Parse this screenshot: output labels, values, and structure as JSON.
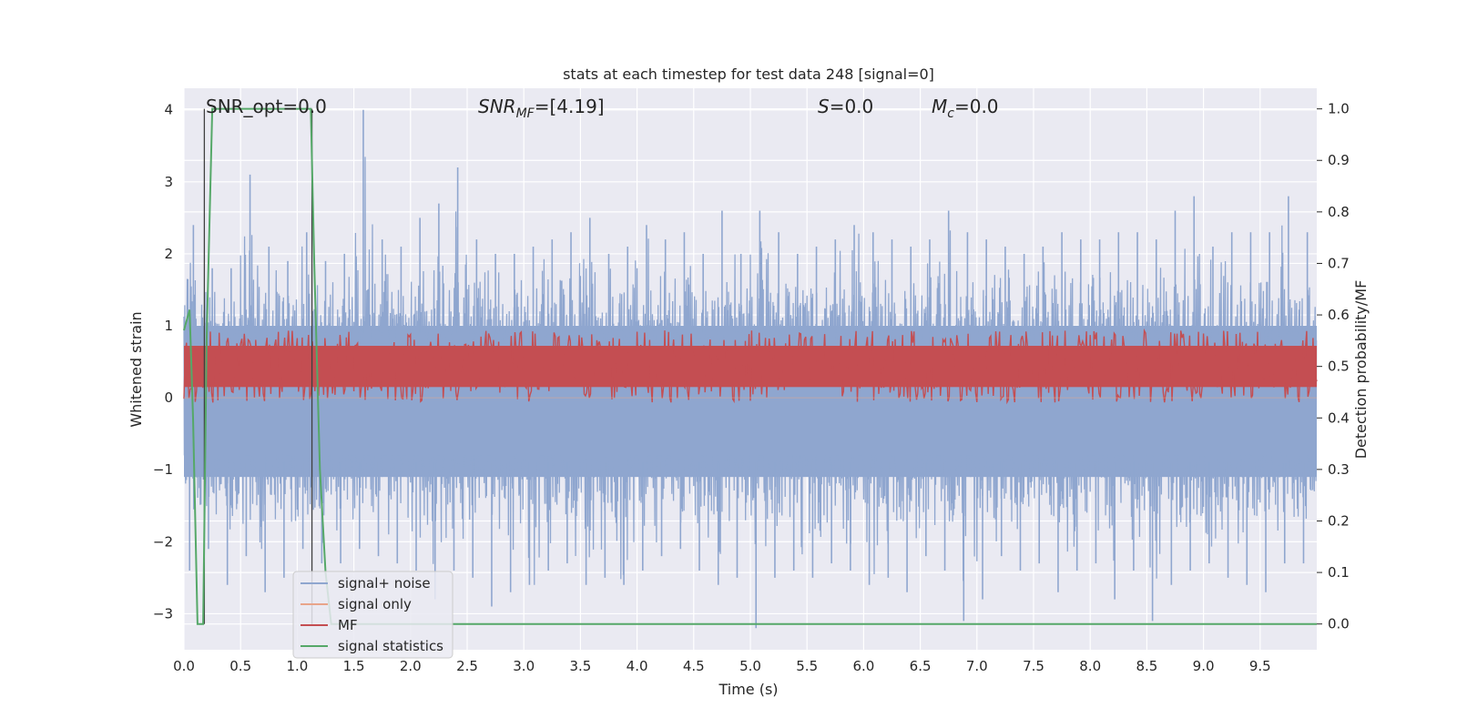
{
  "chart_data": {
    "type": "line",
    "title": "stats at each timestep for test data 248 [signal=0]",
    "xlabel": "Time (s)",
    "ylabel_left": "Whitened strain",
    "ylabel_right": "Detection probability/MF",
    "xlim": [
      0.0,
      10.0
    ],
    "ylim_left": [
      -3.5,
      4.3
    ],
    "ylim_right": [
      -0.05,
      1.04
    ],
    "xticks": [
      0.0,
      0.5,
      1.0,
      1.5,
      2.0,
      2.5,
      3.0,
      3.5,
      4.0,
      4.5,
      5.0,
      5.5,
      6.0,
      6.5,
      7.0,
      7.5,
      8.0,
      8.5,
      9.0,
      9.5
    ],
    "xtick_labels": [
      "0.0",
      "0.5",
      "1.0",
      "1.5",
      "2.0",
      "2.5",
      "3.0",
      "3.5",
      "4.0",
      "4.5",
      "5.0",
      "5.5",
      "6.0",
      "6.5",
      "7.0",
      "7.5",
      "8.0",
      "8.5",
      "9.0",
      "9.5"
    ],
    "yticks_left": [
      -3,
      -2,
      -1,
      0,
      1,
      2,
      3,
      4
    ],
    "ytick_labels_left": [
      "−3",
      "−2",
      "−1",
      "0",
      "1",
      "2",
      "3",
      "4"
    ],
    "yticks_right": [
      0.0,
      0.1,
      0.2,
      0.3,
      0.4,
      0.5,
      0.6,
      0.7,
      0.8,
      0.9,
      1.0
    ],
    "ytick_labels_right": [
      "0.0",
      "0.1",
      "0.2",
      "0.3",
      "0.4",
      "0.5",
      "0.6",
      "0.7",
      "0.8",
      "0.9",
      "1.0"
    ],
    "grid": true,
    "legend_position": "lower-left",
    "series": [
      {
        "name": "signal+ noise",
        "axis": "left",
        "color": "#8fa6cf",
        "description_values": "dense noise, sample peaks",
        "envelope_upper": [
          2.4,
          1.8,
          1.8,
          3.1,
          2.1,
          1.9,
          2.3,
          1.9,
          2.0,
          4.0,
          2.2,
          2.1,
          2.5,
          2.7,
          3.2,
          2.2,
          2.0,
          2.0,
          2.1,
          2.2,
          2.3,
          2.5,
          2.0,
          2.1,
          2.4,
          2.2,
          2.3,
          2.0,
          2.6,
          2.0,
          2.6,
          2.3,
          2.0,
          2.1,
          2.2,
          2.4,
          2.3,
          2.2,
          2.1,
          2.2,
          2.6,
          2.3,
          2.2,
          2.1,
          2.0,
          2.1,
          2.3,
          2.2,
          2.2,
          2.3,
          2.3,
          2.2,
          2.6,
          2.8,
          2.1,
          2.3,
          2.3,
          2.3,
          2.8,
          2.3
        ],
        "envelope_lower": [
          -2.4,
          -2.1,
          -2.6,
          -2.2,
          -2.7,
          -2.5,
          -2.1,
          -2.3,
          -2.3,
          -2.1,
          -2.2,
          -2.3,
          -2.4,
          -2.8,
          -2.4,
          -2.5,
          -2.9,
          -2.7,
          -2.6,
          -2.4,
          -2.3,
          -2.6,
          -2.5,
          -2.6,
          -2.4,
          -2.2,
          -2.1,
          -2.4,
          -2.6,
          -2.5,
          -3.2,
          -2.5,
          -2.4,
          -2.5,
          -2.3,
          -2.4,
          -2.6,
          -2.5,
          -2.7,
          -2.2,
          -2.4,
          -3.1,
          -2.8,
          -2.2,
          -2.4,
          -2.3,
          -2.7,
          -2.4,
          -2.3,
          -2.8,
          -2.4,
          -3.1,
          -2.6,
          -2.4,
          -2.3,
          -2.5,
          -2.6,
          -2.7,
          -2.3,
          -2.3
        ],
        "mean": 0.0
      },
      {
        "name": "signal only",
        "axis": "left",
        "color": "#e8a58a",
        "values_constant": 0.0
      },
      {
        "name": "MF",
        "axis": "right",
        "color": "#c44e52",
        "band_center": 0.5,
        "band_lower": 0.43,
        "band_upper": 0.57,
        "peak_max": 0.58
      },
      {
        "name": "signal statistics",
        "axis": "right",
        "color": "#55a868",
        "x": [
          0.0,
          0.05,
          0.08,
          0.12,
          0.17,
          0.2,
          0.25,
          0.3,
          1.12,
          1.15,
          1.2,
          1.25,
          1.3,
          10.0
        ],
        "y": [
          0.57,
          0.61,
          0.4,
          0.0,
          0.0,
          0.55,
          1.0,
          1.0,
          1.0,
          0.7,
          0.3,
          0.1,
          0.0,
          0.0
        ]
      }
    ],
    "vlines": [
      0.18,
      1.13
    ],
    "annotations": [
      {
        "label": "SNR_opt=0.0",
        "x": 0.2
      },
      {
        "label": "SNR_MF=[4.19]",
        "prefix": "SNR",
        "sub": "MF",
        "suffix": "=[4.19]",
        "x": 2.6
      },
      {
        "label": "S=0.0",
        "prefix": "S",
        "suffix": "=0.0",
        "x": 5.6
      },
      {
        "label": "M_c=0.0",
        "prefix": "M",
        "sub": "c",
        "suffix": "=0.0",
        "x": 6.6
      }
    ]
  },
  "legend": {
    "items": [
      "signal+ noise",
      "signal only",
      "MF",
      "signal statistics"
    ]
  },
  "colors": {
    "plot_bg": "#eaeaf2",
    "grid": "#ffffff",
    "vline": "#404040"
  }
}
